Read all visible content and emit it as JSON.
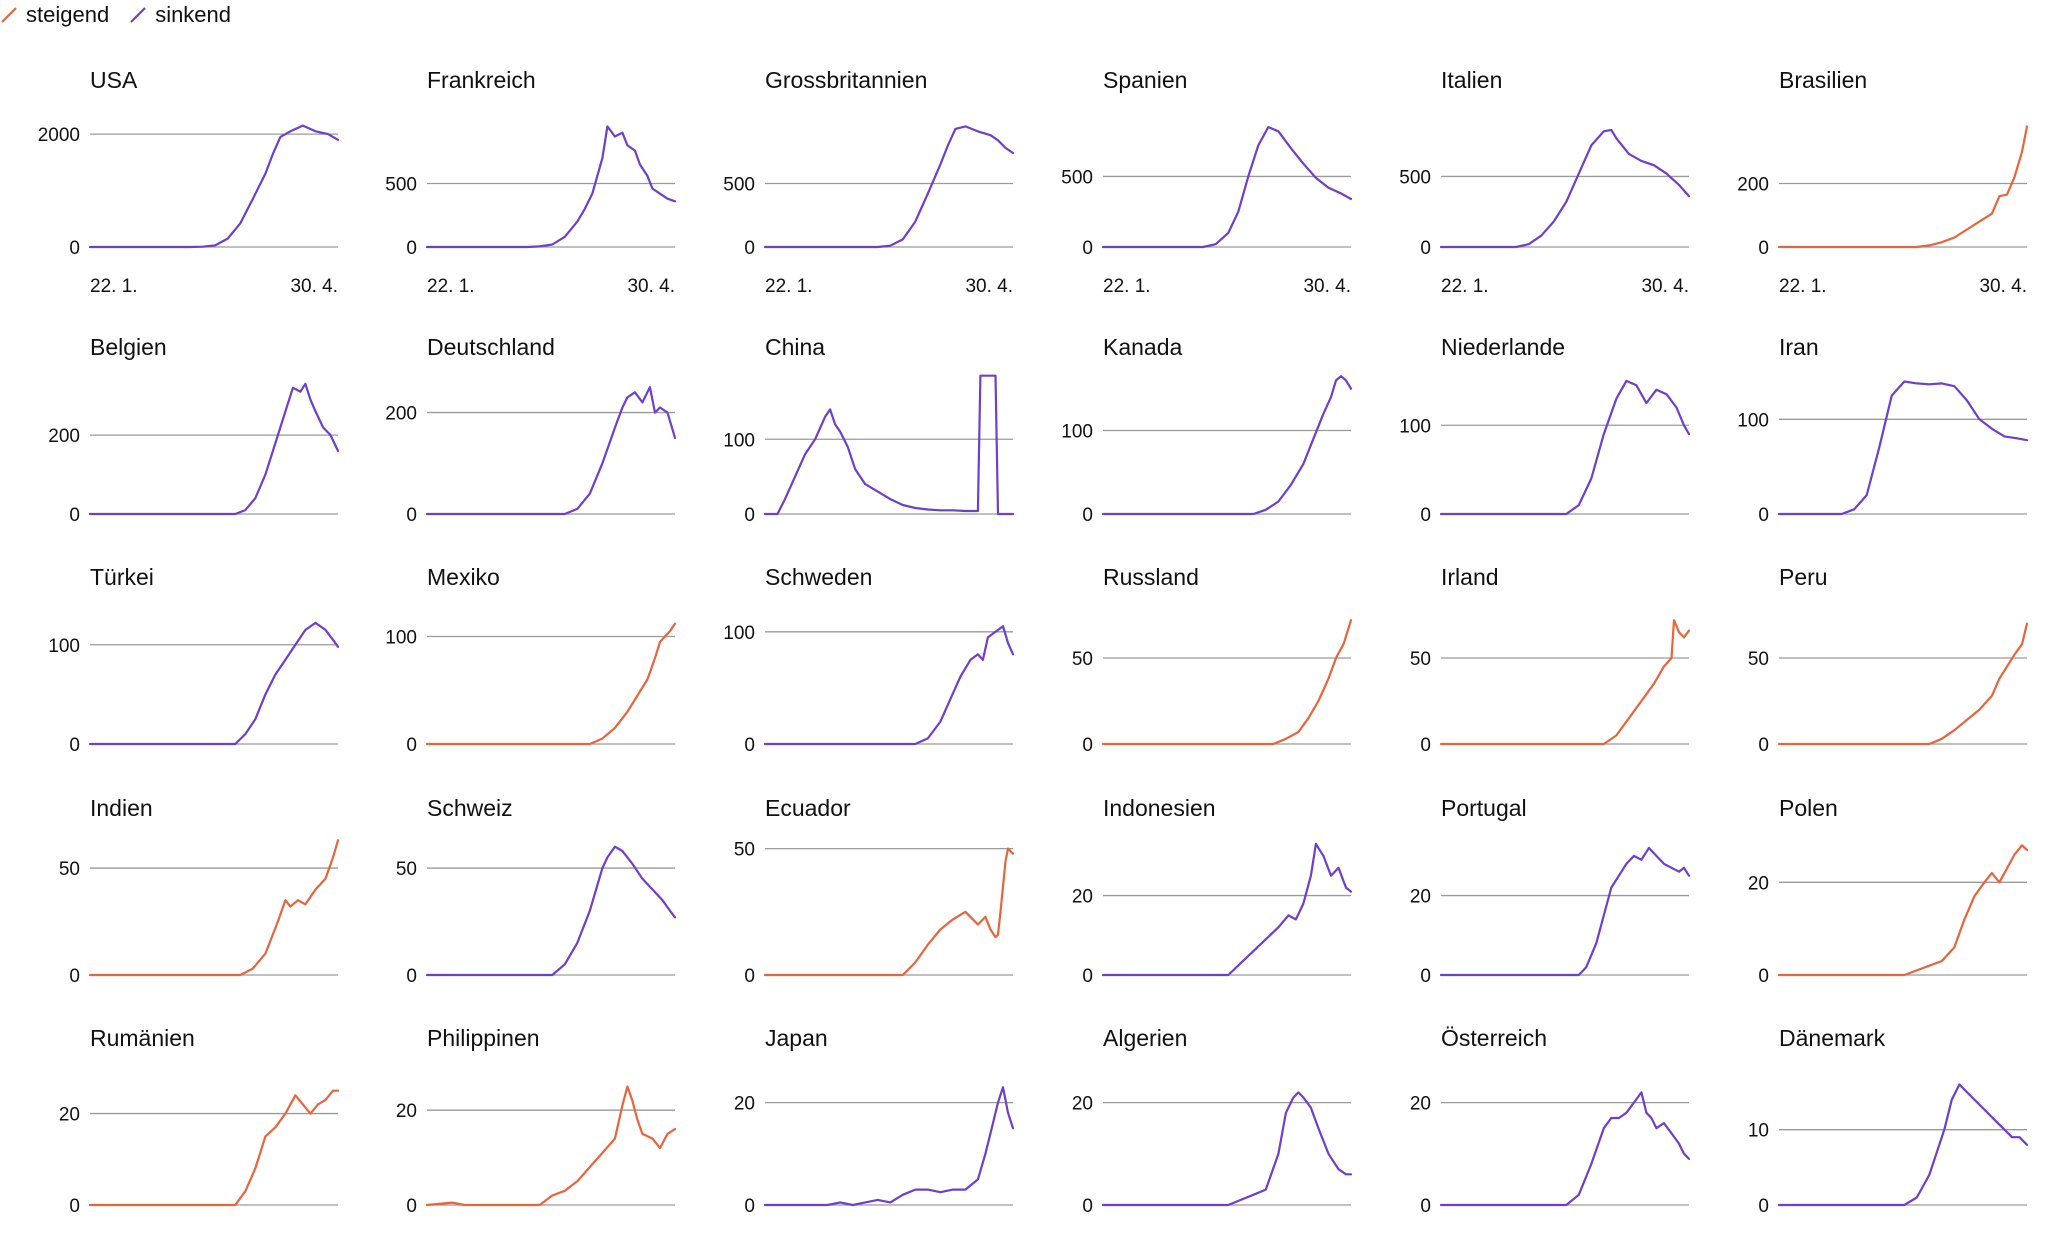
{
  "legend": {
    "rising_label": "steigend",
    "falling_label": "sinkend"
  },
  "colors": {
    "rising": "#e8643c",
    "falling": "#6b3fcf",
    "grid": "#9a9a9a"
  },
  "chart_data": [
    {
      "type": "line",
      "title": "USA",
      "trend": "falling",
      "y_ticks": [
        0,
        2000
      ],
      "ylim": [
        0,
        2250
      ],
      "x_tick_labels": [
        "22. 1.",
        "30. 4."
      ],
      "x": [
        0,
        40,
        45,
        50,
        55,
        60,
        65,
        70,
        73,
        76,
        80,
        85,
        90,
        95,
        99
      ],
      "values": [
        0,
        0,
        5,
        30,
        150,
        420,
        850,
        1300,
        1650,
        1950,
        2050,
        2150,
        2050,
        2000,
        1900
      ]
    },
    {
      "type": "line",
      "title": "Frankreich",
      "trend": "falling",
      "y_ticks": [
        0,
        500
      ],
      "ylim": [
        0,
        1000
      ],
      "x_tick_labels": [
        "22. 1.",
        "30. 4."
      ],
      "x": [
        0,
        40,
        45,
        50,
        55,
        60,
        63,
        66,
        70,
        72,
        75,
        78,
        80,
        83,
        85,
        88,
        90,
        93,
        96,
        99
      ],
      "values": [
        0,
        0,
        5,
        20,
        80,
        200,
        300,
        420,
        700,
        950,
        870,
        900,
        800,
        760,
        650,
        560,
        460,
        420,
        380,
        360
      ]
    },
    {
      "type": "line",
      "title": "Grossbritannien",
      "trend": "falling",
      "y_ticks": [
        0,
        500
      ],
      "ylim": [
        0,
        1000
      ],
      "x_tick_labels": [
        "22. 1.",
        "30. 4."
      ],
      "x": [
        0,
        45,
        50,
        55,
        60,
        65,
        70,
        73,
        76,
        80,
        85,
        90,
        93,
        96,
        99
      ],
      "values": [
        0,
        0,
        10,
        60,
        200,
        420,
        650,
        800,
        930,
        950,
        910,
        880,
        840,
        780,
        740
      ]
    },
    {
      "type": "line",
      "title": "Spanien",
      "trend": "falling",
      "y_ticks": [
        0,
        500
      ],
      "ylim": [
        0,
        900
      ],
      "x_tick_labels": [
        "22. 1.",
        "30. 4."
      ],
      "x": [
        0,
        40,
        45,
        50,
        54,
        58,
        62,
        66,
        70,
        75,
        80,
        85,
        90,
        95,
        99
      ],
      "values": [
        0,
        0,
        20,
        100,
        250,
        500,
        720,
        850,
        820,
        700,
        590,
        490,
        420,
        380,
        340
      ]
    },
    {
      "type": "line",
      "title": "Italien",
      "trend": "falling",
      "y_ticks": [
        0,
        500
      ],
      "ylim": [
        0,
        900
      ],
      "x_tick_labels": [
        "22. 1.",
        "30. 4."
      ],
      "x": [
        0,
        30,
        35,
        40,
        45,
        50,
        55,
        60,
        65,
        68,
        70,
        75,
        80,
        85,
        90,
        95,
        99
      ],
      "values": [
        0,
        0,
        20,
        80,
        180,
        320,
        520,
        720,
        820,
        830,
        770,
        660,
        610,
        580,
        520,
        440,
        360
      ]
    },
    {
      "type": "line",
      "title": "Brasilien",
      "trend": "rising",
      "y_ticks": [
        0,
        200
      ],
      "ylim": [
        0,
        400
      ],
      "x_tick_labels": [
        "22. 1.",
        "30. 4."
      ],
      "x": [
        0,
        55,
        60,
        65,
        70,
        75,
        80,
        85,
        88,
        91,
        94,
        97,
        99
      ],
      "values": [
        0,
        0,
        5,
        15,
        30,
        55,
        80,
        105,
        160,
        165,
        220,
        300,
        380
      ]
    },
    {
      "type": "line",
      "title": "Belgien",
      "trend": "falling",
      "y_ticks": [
        0,
        200
      ],
      "ylim": [
        0,
        360
      ],
      "x_tick_labels": [],
      "x": [
        0,
        58,
        62,
        66,
        70,
        74,
        78,
        81,
        84,
        86,
        88,
        90,
        93,
        96,
        99
      ],
      "values": [
        0,
        0,
        10,
        40,
        100,
        180,
        260,
        320,
        310,
        330,
        290,
        260,
        220,
        200,
        160
      ]
    },
    {
      "type": "line",
      "title": "Deutschland",
      "trend": "falling",
      "y_ticks": [
        0,
        200
      ],
      "ylim": [
        0,
        280
      ],
      "x_tick_labels": [],
      "x": [
        0,
        55,
        60,
        65,
        70,
        75,
        78,
        80,
        83,
        86,
        89,
        91,
        93,
        96,
        99
      ],
      "values": [
        0,
        0,
        10,
        40,
        100,
        170,
        210,
        230,
        240,
        220,
        250,
        200,
        210,
        200,
        150
      ]
    },
    {
      "type": "line",
      "title": "China",
      "trend": "falling",
      "y_ticks": [
        0,
        100
      ],
      "ylim": [
        0,
        190
      ],
      "x_tick_labels": [],
      "x": [
        0,
        5,
        8,
        12,
        16,
        20,
        24,
        26,
        28,
        30,
        33,
        36,
        40,
        45,
        50,
        55,
        60,
        65,
        70,
        75,
        80,
        85,
        86,
        87,
        92,
        93,
        95,
        99
      ],
      "values": [
        0,
        0,
        20,
        50,
        80,
        100,
        130,
        140,
        120,
        110,
        90,
        60,
        40,
        30,
        20,
        12,
        8,
        6,
        5,
        5,
        4,
        4,
        185,
        185,
        185,
        0,
        0,
        0
      ]
    },
    {
      "type": "line",
      "title": "Kanada",
      "trend": "falling",
      "y_ticks": [
        0,
        100
      ],
      "ylim": [
        0,
        170
      ],
      "x_tick_labels": [],
      "x": [
        0,
        60,
        65,
        70,
        75,
        80,
        84,
        88,
        91,
        93,
        95,
        97,
        99
      ],
      "values": [
        0,
        0,
        5,
        15,
        35,
        60,
        90,
        120,
        140,
        160,
        165,
        160,
        150
      ]
    },
    {
      "type": "line",
      "title": "Niederlande",
      "trend": "falling",
      "y_ticks": [
        0,
        100
      ],
      "ylim": [
        0,
        160
      ],
      "x_tick_labels": [],
      "x": [
        0,
        50,
        55,
        60,
        65,
        70,
        74,
        78,
        82,
        86,
        90,
        94,
        97,
        99
      ],
      "values": [
        0,
        0,
        10,
        40,
        90,
        130,
        150,
        145,
        125,
        140,
        135,
        120,
        100,
        90
      ]
    },
    {
      "type": "line",
      "title": "Iran",
      "trend": "falling",
      "y_ticks": [
        0,
        100
      ],
      "ylim": [
        0,
        150
      ],
      "x_tick_labels": [],
      "x": [
        0,
        25,
        30,
        35,
        40,
        45,
        50,
        55,
        60,
        65,
        70,
        75,
        80,
        85,
        90,
        95,
        99
      ],
      "values": [
        0,
        0,
        5,
        20,
        70,
        125,
        140,
        138,
        137,
        138,
        135,
        120,
        100,
        90,
        82,
        80,
        78
      ]
    },
    {
      "type": "line",
      "title": "Türkei",
      "trend": "falling",
      "y_ticks": [
        0,
        100
      ],
      "ylim": [
        0,
        130
      ],
      "x_tick_labels": [],
      "x": [
        0,
        58,
        62,
        66,
        70,
        74,
        78,
        82,
        86,
        90,
        94,
        97,
        99
      ],
      "values": [
        0,
        0,
        10,
        25,
        50,
        70,
        85,
        100,
        115,
        122,
        115,
        105,
        98
      ]
    },
    {
      "type": "line",
      "title": "Mexiko",
      "trend": "rising",
      "y_ticks": [
        0,
        100
      ],
      "ylim": [
        0,
        120
      ],
      "x_tick_labels": [],
      "x": [
        0,
        65,
        70,
        75,
        80,
        84,
        88,
        91,
        93,
        95,
        97,
        99
      ],
      "values": [
        0,
        0,
        5,
        15,
        30,
        45,
        60,
        80,
        95,
        100,
        105,
        112
      ]
    },
    {
      "type": "line",
      "title": "Schweden",
      "trend": "falling",
      "y_ticks": [
        0,
        100
      ],
      "ylim": [
        0,
        115
      ],
      "x_tick_labels": [],
      "x": [
        0,
        60,
        65,
        70,
        74,
        78,
        82,
        85,
        87,
        89,
        92,
        95,
        97,
        99
      ],
      "values": [
        0,
        0,
        5,
        20,
        40,
        60,
        75,
        80,
        75,
        95,
        100,
        105,
        90,
        80
      ]
    },
    {
      "type": "line",
      "title": "Russland",
      "trend": "rising",
      "y_ticks": [
        0,
        50
      ],
      "ylim": [
        0,
        75
      ],
      "x_tick_labels": [],
      "x": [
        0,
        68,
        73,
        78,
        82,
        86,
        90,
        93,
        96,
        99
      ],
      "values": [
        0,
        0,
        3,
        7,
        15,
        25,
        38,
        50,
        58,
        72
      ]
    },
    {
      "type": "line",
      "title": "Irland",
      "trend": "rising",
      "y_ticks": [
        0,
        50
      ],
      "ylim": [
        0,
        75
      ],
      "x_tick_labels": [],
      "x": [
        0,
        65,
        70,
        75,
        80,
        85,
        89,
        92,
        93,
        95,
        97,
        99
      ],
      "values": [
        0,
        0,
        5,
        15,
        25,
        35,
        45,
        50,
        72,
        65,
        62,
        66
      ]
    },
    {
      "type": "line",
      "title": "Peru",
      "trend": "rising",
      "y_ticks": [
        0,
        50
      ],
      "ylim": [
        0,
        75
      ],
      "x_tick_labels": [],
      "x": [
        0,
        60,
        65,
        70,
        75,
        80,
        85,
        88,
        91,
        94,
        97,
        99
      ],
      "values": [
        0,
        0,
        3,
        8,
        14,
        20,
        28,
        38,
        45,
        52,
        58,
        70
      ]
    },
    {
      "type": "line",
      "title": "Indien",
      "trend": "rising",
      "y_ticks": [
        0,
        50
      ],
      "ylim": [
        0,
        65
      ],
      "x_tick_labels": [],
      "x": [
        0,
        60,
        65,
        70,
        75,
        78,
        80,
        83,
        86,
        90,
        94,
        97,
        99
      ],
      "values": [
        0,
        0,
        3,
        10,
        25,
        35,
        32,
        35,
        33,
        40,
        45,
        55,
        63
      ]
    },
    {
      "type": "line",
      "title": "Schweiz",
      "trend": "falling",
      "y_ticks": [
        0,
        50
      ],
      "ylim": [
        0,
        65
      ],
      "x_tick_labels": [],
      "x": [
        0,
        50,
        55,
        60,
        65,
        70,
        72,
        75,
        78,
        82,
        86,
        90,
        94,
        97,
        99
      ],
      "values": [
        0,
        0,
        5,
        15,
        30,
        50,
        55,
        60,
        58,
        52,
        45,
        40,
        35,
        30,
        27
      ]
    },
    {
      "type": "line",
      "title": "Ecuador",
      "trend": "rising",
      "y_ticks": [
        0,
        50
      ],
      "ylim": [
        0,
        55
      ],
      "x_tick_labels": [],
      "x": [
        0,
        55,
        60,
        65,
        70,
        75,
        80,
        85,
        88,
        90,
        92,
        93,
        94,
        96,
        97,
        99
      ],
      "values": [
        0,
        0,
        5,
        12,
        18,
        22,
        25,
        20,
        23,
        18,
        15,
        16,
        25,
        45,
        50,
        48
      ]
    },
    {
      "type": "line",
      "title": "Indonesien",
      "trend": "falling",
      "y_ticks": [
        0,
        20
      ],
      "ylim": [
        0,
        35
      ],
      "x_tick_labels": [],
      "x": [
        0,
        50,
        55,
        60,
        65,
        70,
        74,
        77,
        80,
        83,
        85,
        88,
        91,
        94,
        97,
        99
      ],
      "values": [
        0,
        0,
        3,
        6,
        9,
        12,
        15,
        14,
        18,
        25,
        33,
        30,
        25,
        27,
        22,
        21
      ]
    },
    {
      "type": "line",
      "title": "Portugal",
      "trend": "falling",
      "y_ticks": [
        0,
        20
      ],
      "ylim": [
        0,
        35
      ],
      "x_tick_labels": [],
      "x": [
        0,
        55,
        58,
        62,
        65,
        68,
        71,
        74,
        77,
        80,
        83,
        86,
        89,
        92,
        95,
        97,
        99
      ],
      "values": [
        0,
        0,
        2,
        8,
        15,
        22,
        25,
        28,
        30,
        29,
        32,
        30,
        28,
        27,
        26,
        27,
        25
      ]
    },
    {
      "type": "line",
      "title": "Polen",
      "trend": "rising",
      "y_ticks": [
        0,
        20
      ],
      "ylim": [
        0,
        30
      ],
      "x_tick_labels": [],
      "x": [
        0,
        50,
        55,
        60,
        65,
        70,
        74,
        78,
        82,
        85,
        88,
        91,
        94,
        97,
        99
      ],
      "values": [
        0,
        0,
        1,
        2,
        3,
        6,
        12,
        17,
        20,
        22,
        20,
        23,
        26,
        28,
        27
      ]
    },
    {
      "type": "line",
      "title": "Rumänien",
      "trend": "rising",
      "y_ticks": [
        0,
        20
      ],
      "ylim": [
        0,
        28
      ],
      "x_tick_labels": [],
      "x": [
        0,
        58,
        62,
        66,
        70,
        74,
        78,
        82,
        85,
        88,
        91,
        94,
        97,
        99
      ],
      "values": [
        0,
        0,
        3,
        8,
        15,
        17,
        20,
        24,
        22,
        20,
        22,
        23,
        25,
        25
      ]
    },
    {
      "type": "line",
      "title": "Philippinen",
      "trend": "rising",
      "y_ticks": [
        0,
        20
      ],
      "ylim": [
        0,
        27
      ],
      "x_tick_labels": [],
      "x": [
        0,
        10,
        15,
        45,
        50,
        55,
        60,
        65,
        70,
        75,
        78,
        80,
        82,
        84,
        86,
        90,
        93,
        96,
        99
      ],
      "values": [
        0,
        0.5,
        0,
        0,
        2,
        3,
        5,
        8,
        11,
        14,
        21,
        25,
        22,
        18,
        15,
        14,
        12,
        15,
        16
      ]
    },
    {
      "type": "line",
      "title": "Japan",
      "trend": "falling",
      "y_ticks": [
        0,
        20
      ],
      "ylim": [
        0,
        25
      ],
      "x_tick_labels": [],
      "x": [
        0,
        25,
        30,
        35,
        40,
        45,
        50,
        55,
        60,
        65,
        70,
        75,
        80,
        85,
        88,
        91,
        93,
        95,
        97,
        99
      ],
      "values": [
        0,
        0,
        0.5,
        0,
        0.5,
        1,
        0.5,
        2,
        3,
        3,
        2.5,
        3,
        3,
        5,
        10,
        16,
        20,
        23,
        18,
        15
      ]
    },
    {
      "type": "line",
      "title": "Algerien",
      "trend": "falling",
      "y_ticks": [
        0,
        20
      ],
      "ylim": [
        0,
        25
      ],
      "x_tick_labels": [],
      "x": [
        0,
        50,
        55,
        60,
        65,
        70,
        73,
        76,
        78,
        80,
        83,
        86,
        90,
        94,
        97,
        99
      ],
      "values": [
        0,
        0,
        1,
        2,
        3,
        10,
        18,
        21,
        22,
        21,
        19,
        15,
        10,
        7,
        6,
        6
      ]
    },
    {
      "type": "line",
      "title": "Österreich",
      "trend": "falling",
      "y_ticks": [
        0,
        20
      ],
      "ylim": [
        0,
        25
      ],
      "x_tick_labels": [],
      "x": [
        0,
        50,
        55,
        60,
        65,
        68,
        71,
        74,
        77,
        80,
        82,
        84,
        86,
        89,
        92,
        95,
        97,
        99
      ],
      "values": [
        0,
        0,
        2,
        8,
        15,
        17,
        17,
        18,
        20,
        22,
        18,
        17,
        15,
        16,
        14,
        12,
        10,
        9
      ]
    },
    {
      "type": "line",
      "title": "Dänemark",
      "trend": "falling",
      "y_ticks": [
        0,
        10
      ],
      "ylim": [
        0,
        17
      ],
      "x_tick_labels": [],
      "x": [
        0,
        50,
        55,
        60,
        63,
        66,
        69,
        72,
        75,
        78,
        81,
        84,
        87,
        90,
        93,
        96,
        99
      ],
      "values": [
        0,
        0,
        1,
        4,
        7,
        10,
        14,
        16,
        15,
        14,
        13,
        12,
        11,
        10,
        9,
        9,
        8
      ]
    }
  ]
}
